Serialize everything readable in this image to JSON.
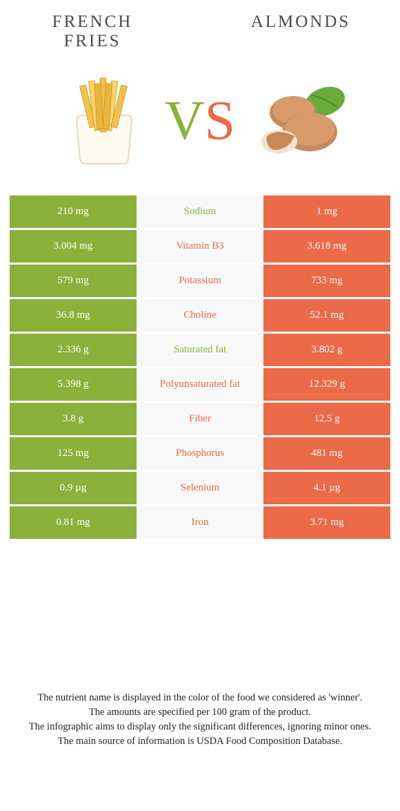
{
  "foods": {
    "left": {
      "name": "French\nfries"
    },
    "right": {
      "name": "Almonds"
    }
  },
  "vs": {
    "v": "V",
    "s": "S"
  },
  "colors": {
    "left": "#8ab13a",
    "right": "#eb6a48",
    "mid_bg": "#f8f8f8",
    "page_bg": "#ffffff",
    "title_text": "#4a4a4a"
  },
  "rows": [
    {
      "left": "210 mg",
      "label": "Sodium",
      "right": "1 mg",
      "winner": "left"
    },
    {
      "left": "3.004 mg",
      "label": "Vitamin B3",
      "right": "3.618 mg",
      "winner": "right"
    },
    {
      "left": "579 mg",
      "label": "Potassium",
      "right": "733 mg",
      "winner": "right"
    },
    {
      "left": "36.8 mg",
      "label": "Choline",
      "right": "52.1 mg",
      "winner": "right"
    },
    {
      "left": "2.336 g",
      "label": "Saturated fat",
      "right": "3.802 g",
      "winner": "left"
    },
    {
      "left": "5.398 g",
      "label": "Polyunsaturated fat",
      "right": "12.329 g",
      "winner": "right"
    },
    {
      "left": "3.8 g",
      "label": "Fiber",
      "right": "12.5 g",
      "winner": "right"
    },
    {
      "left": "125 mg",
      "label": "Phosphorus",
      "right": "481 mg",
      "winner": "right"
    },
    {
      "left": "0.9 µg",
      "label": "Selenium",
      "right": "4.1 µg",
      "winner": "right"
    },
    {
      "left": "0.81 mg",
      "label": "Iron",
      "right": "3.71 mg",
      "winner": "right"
    }
  ],
  "footnote": [
    "The nutrient name is displayed in the color of the food we considered as 'winner'.",
    "The amounts are specified per 100 gram of the product.",
    "The infographic aims to display only the significant differences, ignoring minor ones.",
    "The main source of information is USDA Food Composition Database."
  ]
}
